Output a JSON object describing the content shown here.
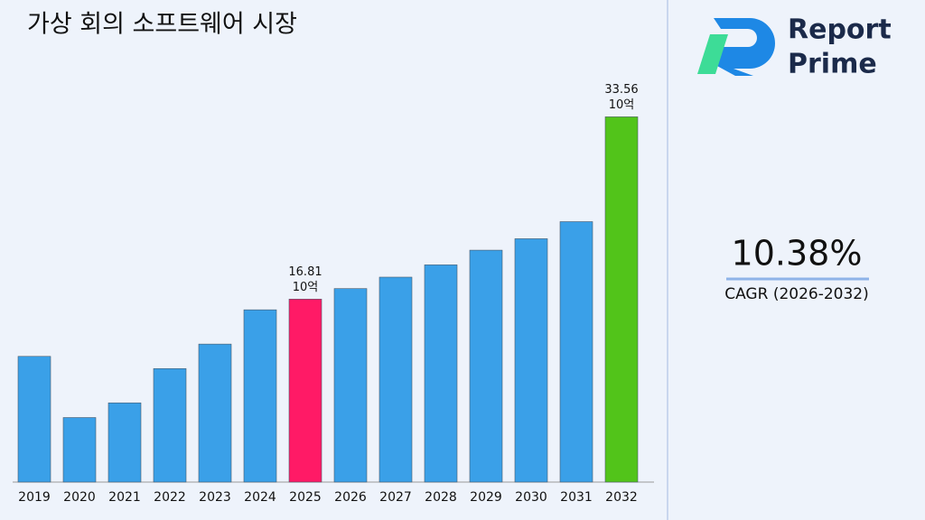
{
  "chart_data": {
    "type": "bar",
    "title": "가상 회의 소프트웨어 시장",
    "categories": [
      "2019",
      "2020",
      "2021",
      "2022",
      "2023",
      "2024",
      "2025",
      "2026",
      "2027",
      "2028",
      "2029",
      "2030",
      "2031",
      "2032"
    ],
    "values": [
      11.55,
      5.93,
      7.28,
      10.43,
      12.68,
      15.83,
      16.81,
      17.78,
      18.83,
      19.96,
      21.31,
      22.36,
      23.93,
      33.56
    ],
    "value_labels": [
      null,
      null,
      null,
      null,
      null,
      null,
      "16.81",
      null,
      null,
      null,
      null,
      null,
      null,
      "33.56"
    ],
    "value_unit": "10억",
    "colors": [
      "#3aa0e8",
      "#3aa0e8",
      "#3aa0e8",
      "#3aa0e8",
      "#3aa0e8",
      "#3aa0e8",
      "#ff1a66",
      "#3aa0e8",
      "#3aa0e8",
      "#3aa0e8",
      "#3aa0e8",
      "#3aa0e8",
      "#3aa0e8",
      "#52c41a"
    ],
    "ylim": [
      0,
      36
    ]
  },
  "side_panel": {
    "brand": [
      "Report",
      "Prime"
    ],
    "cagr": "10.38%",
    "cagr_label": "CAGR (2026-2032)"
  }
}
